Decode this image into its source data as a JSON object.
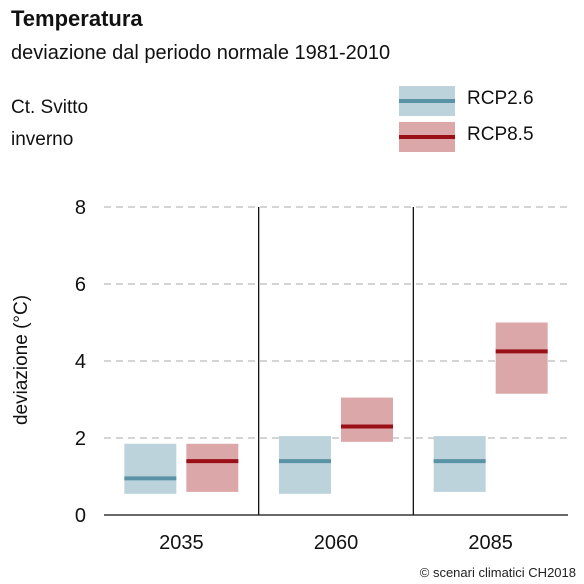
{
  "header": {
    "title": "Temperatura",
    "subtitle": "deviazione dal periodo normale 1981-2010"
  },
  "location": {
    "region": "Ct. Svitto",
    "season": "inverno"
  },
  "credit": "© scenari climatici CH2018",
  "colors": {
    "rcp26_fill": "#bcd3dc",
    "rcp26_line": "#5a93a6",
    "rcp85_fill": "#dba7a9",
    "rcp85_line": "#9b0f17",
    "grid": "#bbbbbb",
    "axis": "#111111"
  },
  "chart_data": {
    "type": "bar",
    "title": "Temperatura",
    "subtitle": "deviazione dal periodo normale 1981-2010",
    "xlabel": "",
    "ylabel": "deviazione (°C)",
    "ylim": [
      0,
      8
    ],
    "yticks": [
      0,
      2,
      4,
      6,
      8
    ],
    "grid": true,
    "legend_position": "top-right",
    "categories": [
      "2035",
      "2060",
      "2085"
    ],
    "series": [
      {
        "name": "RCP2.6",
        "low": [
          0.55,
          0.55,
          0.6
        ],
        "median": [
          0.95,
          1.4,
          1.4
        ],
        "high": [
          1.85,
          2.05,
          2.05
        ]
      },
      {
        "name": "RCP8.5",
        "low": [
          0.6,
          1.9,
          3.15
        ],
        "median": [
          1.4,
          2.3,
          4.25
        ],
        "high": [
          1.85,
          3.05,
          5.0
        ]
      }
    ]
  }
}
